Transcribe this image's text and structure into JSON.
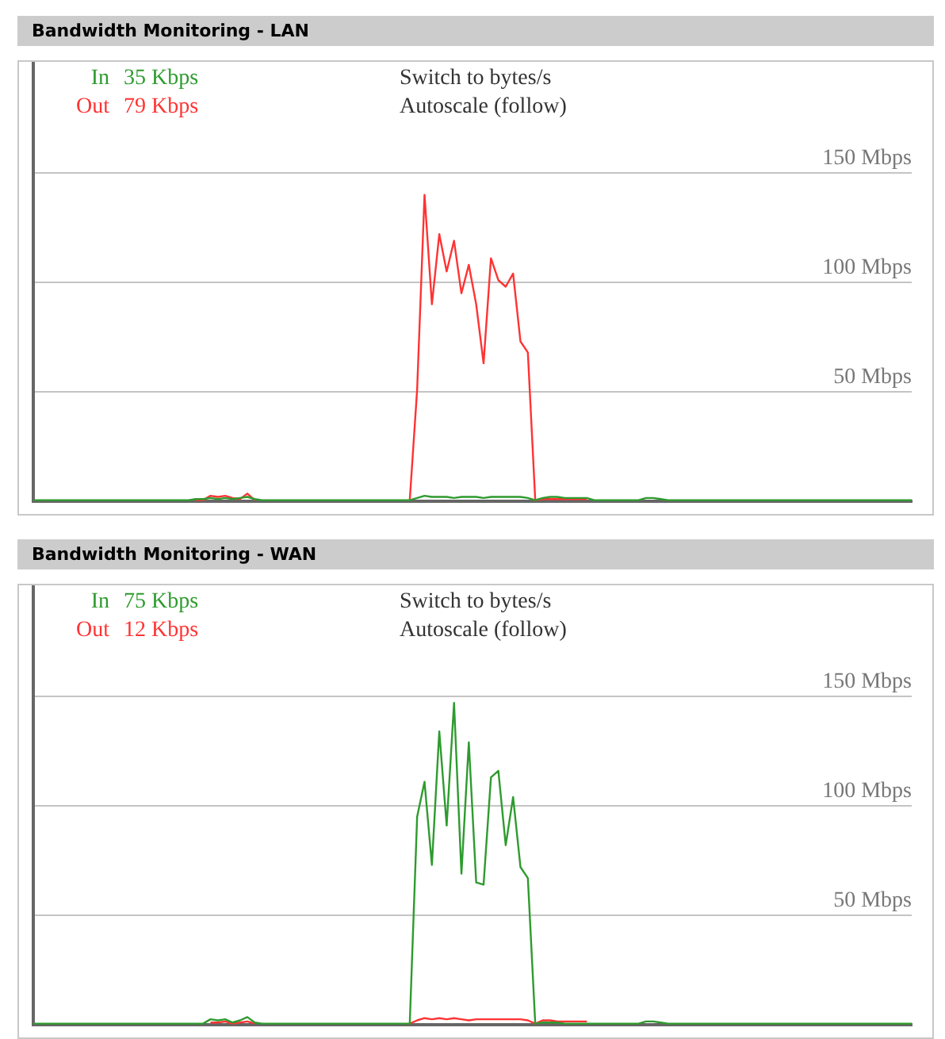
{
  "chart_data": [
    {
      "type": "line",
      "title": "Bandwidth Monitoring - LAN",
      "legend": "top left",
      "tick_labels": "y",
      "grid": "y",
      "marker": "none",
      "ylim": [
        0,
        200
      ],
      "yticks": [
        {
          "value": 50,
          "label": "50 Mbps"
        },
        {
          "value": 100,
          "label": "100 Mbps"
        },
        {
          "value": 150,
          "label": "150 Mbps"
        }
      ],
      "annotations": [
        "35 Kbps",
        "79 Kbps",
        "Switch to bytes/s",
        "Autoscale (follow)"
      ],
      "categories": [
        null,
        null,
        null,
        null,
        null,
        null,
        null,
        null,
        null,
        null,
        null,
        null,
        null,
        null,
        null,
        null,
        null,
        null,
        null,
        null,
        null,
        null,
        null,
        null,
        null,
        null,
        null,
        null,
        null,
        null,
        null,
        null,
        null,
        null,
        null,
        null,
        null,
        null,
        null,
        null,
        null,
        null,
        null,
        null,
        null,
        null,
        null,
        null,
        null,
        null,
        null,
        null,
        null,
        null,
        null,
        null,
        null,
        null,
        null,
        null,
        null,
        null,
        null,
        null,
        null,
        null,
        null,
        null,
        null,
        null,
        null,
        null,
        null,
        null,
        null,
        null,
        null,
        null,
        null,
        null,
        null,
        null,
        null,
        null,
        null,
        null,
        null,
        null,
        null,
        null,
        null,
        null,
        null,
        null,
        null,
        null,
        null,
        null,
        null,
        null,
        null,
        null,
        null,
        null,
        null,
        null,
        null,
        null,
        null,
        null,
        null,
        null,
        null,
        null,
        null,
        null,
        null,
        null,
        null,
        null
      ],
      "series": [
        {
          "name": "In",
          "color": "#2e9b2e",
          "values": [
            0.5,
            0.5,
            0.5,
            0.5,
            0.5,
            0.5,
            0.5,
            0.5,
            0.5,
            0.5,
            0.5,
            0.5,
            0.5,
            0.5,
            0.5,
            0.5,
            0.5,
            0.5,
            0.5,
            0.5,
            0.5,
            0.5,
            1,
            1,
            1.5,
            1,
            1.5,
            1,
            1.5,
            2,
            1,
            0.5,
            0.5,
            0.5,
            0.5,
            0.5,
            0.5,
            0.5,
            0.5,
            0.5,
            0.5,
            0.5,
            0.5,
            0.5,
            0.5,
            0.5,
            0.5,
            0.5,
            0.5,
            0.5,
            0.5,
            0.5,
            1.5,
            2.5,
            2,
            2,
            2,
            1.5,
            2,
            2,
            2,
            1.5,
            2,
            2,
            2,
            2,
            2,
            1.5,
            0.5,
            1.5,
            2,
            2,
            1.5,
            1.5,
            1.5,
            1.5,
            0.5,
            0.5,
            0.5,
            0.5,
            0.5,
            0.5,
            0.5,
            1.5,
            1.5,
            1,
            0.5,
            0.5,
            0.5,
            0.5,
            0.5,
            0.5,
            0.5,
            0.5,
            0.5,
            0.5,
            0.5,
            0.5,
            0.5,
            0.5,
            0.5,
            0.5,
            0.5,
            0.5,
            0.5,
            0.5,
            0.5,
            0.5,
            0.5,
            0.5,
            0.5,
            0.5,
            0.5,
            0.5,
            0.5,
            0.5,
            0.5,
            0.5,
            0.5,
            0.5
          ]
        },
        {
          "name": "Out",
          "color": "#ff3333",
          "values": [
            null,
            null,
            null,
            null,
            null,
            null,
            null,
            null,
            null,
            null,
            null,
            null,
            null,
            null,
            null,
            null,
            null,
            null,
            null,
            null,
            null,
            null,
            0.5,
            0.5,
            2.5,
            2,
            2.5,
            1.5,
            1,
            3.5,
            0.5,
            null,
            null,
            null,
            null,
            null,
            null,
            null,
            null,
            null,
            null,
            null,
            null,
            null,
            null,
            null,
            null,
            null,
            null,
            null,
            null,
            0.5,
            51,
            140,
            90,
            122,
            105,
            119,
            95,
            108,
            90,
            63,
            111,
            101,
            98,
            104,
            73,
            68,
            0.5,
            1,
            1,
            1,
            1,
            1,
            1,
            1,
            null,
            null,
            null,
            null,
            null,
            null,
            null,
            null,
            null,
            null,
            null,
            null,
            null,
            null,
            null,
            null,
            null,
            null,
            null,
            null,
            null,
            null,
            null,
            null,
            null,
            null,
            null,
            null,
            null,
            null,
            null,
            null,
            null,
            null,
            null,
            null,
            null,
            null,
            null,
            null,
            null,
            null,
            null,
            null
          ]
        }
      ]
    },
    {
      "type": "line",
      "title": "Bandwidth Monitoring - WAN",
      "legend": "top left",
      "tick_labels": "y",
      "grid": "y",
      "marker": "none",
      "ylim": [
        0,
        200
      ],
      "yticks": [
        {
          "value": 50,
          "label": "50 Mbps"
        },
        {
          "value": 100,
          "label": "100 Mbps"
        },
        {
          "value": 150,
          "label": "150 Mbps"
        }
      ],
      "annotations": [
        "75 Kbps",
        "12 Kbps",
        "Switch to bytes/s",
        "Autoscale (follow)"
      ],
      "categories": [
        null,
        null,
        null,
        null,
        null,
        null,
        null,
        null,
        null,
        null,
        null,
        null,
        null,
        null,
        null,
        null,
        null,
        null,
        null,
        null,
        null,
        null,
        null,
        null,
        null,
        null,
        null,
        null,
        null,
        null,
        null,
        null,
        null,
        null,
        null,
        null,
        null,
        null,
        null,
        null,
        null,
        null,
        null,
        null,
        null,
        null,
        null,
        null,
        null,
        null,
        null,
        null,
        null,
        null,
        null,
        null,
        null,
        null,
        null,
        null,
        null,
        null,
        null,
        null,
        null,
        null,
        null,
        null,
        null,
        null,
        null,
        null,
        null,
        null,
        null,
        null,
        null,
        null,
        null,
        null,
        null,
        null,
        null,
        null,
        null,
        null,
        null,
        null,
        null,
        null,
        null,
        null,
        null,
        null,
        null,
        null,
        null,
        null,
        null,
        null,
        null,
        null,
        null,
        null,
        null,
        null,
        null,
        null,
        null,
        null,
        null,
        null,
        null,
        null,
        null,
        null,
        null,
        null,
        null,
        null
      ],
      "series": [
        {
          "name": "In",
          "color": "#2e9b2e",
          "values": [
            0.5,
            0.5,
            0.5,
            0.5,
            0.5,
            0.5,
            0.5,
            0.5,
            0.5,
            0.5,
            0.5,
            0.5,
            0.5,
            0.5,
            0.5,
            0.5,
            0.5,
            0.5,
            0.5,
            0.5,
            0.5,
            0.5,
            0.5,
            0.5,
            2.5,
            2,
            2.5,
            1,
            2,
            3.5,
            1,
            0.5,
            0.5,
            0.5,
            0.5,
            0.5,
            0.5,
            0.5,
            0.5,
            0.5,
            0.5,
            0.5,
            0.5,
            0.5,
            0.5,
            0.5,
            0.5,
            0.5,
            0.5,
            0.5,
            0.5,
            0.5,
            95,
            111,
            73,
            134,
            91,
            147,
            69,
            129,
            65,
            64,
            113,
            116,
            82,
            104,
            72,
            67,
            0.5,
            1,
            1,
            1,
            0.5,
            0.5,
            0.5,
            0.5,
            0.5,
            0.5,
            0.5,
            0.5,
            0.5,
            0.5,
            0.5,
            1.5,
            1.5,
            1,
            0.5,
            0.5,
            0.5,
            0.5,
            0.5,
            0.5,
            0.5,
            0.5,
            0.5,
            0.5,
            0.5,
            0.5,
            0.5,
            0.5,
            0.5,
            0.5,
            0.5,
            0.5,
            0.5,
            0.5,
            0.5,
            0.5,
            0.5,
            0.5,
            0.5,
            0.5,
            0.5,
            0.5,
            0.5,
            0.5,
            0.5,
            0.5,
            0.5,
            0.5
          ]
        },
        {
          "name": "Out",
          "color": "#ff3333",
          "values": [
            null,
            null,
            null,
            null,
            null,
            null,
            null,
            null,
            null,
            null,
            null,
            null,
            null,
            null,
            null,
            null,
            null,
            null,
            null,
            null,
            null,
            null,
            null,
            null,
            1,
            1,
            1.5,
            0.5,
            1,
            1.5,
            0.5,
            null,
            null,
            null,
            null,
            null,
            null,
            null,
            null,
            null,
            null,
            null,
            null,
            null,
            null,
            null,
            null,
            null,
            null,
            null,
            null,
            0.5,
            2,
            3,
            2.5,
            3,
            2.5,
            3,
            2.5,
            2,
            2.5,
            2.5,
            2.5,
            2.5,
            2.5,
            2.5,
            2.5,
            2,
            0.5,
            2,
            2,
            1.5,
            1.5,
            1.5,
            1.5,
            1.5,
            null,
            null,
            null,
            null,
            null,
            null,
            null,
            null,
            null,
            null,
            null,
            null,
            null,
            null,
            null,
            null,
            null,
            null,
            null,
            null,
            null,
            null,
            null,
            null,
            null,
            null,
            null,
            null,
            null,
            null,
            null,
            null,
            null,
            null,
            null,
            null,
            null,
            null,
            null,
            null,
            null,
            null,
            null,
            null
          ]
        }
      ]
    }
  ]
}
